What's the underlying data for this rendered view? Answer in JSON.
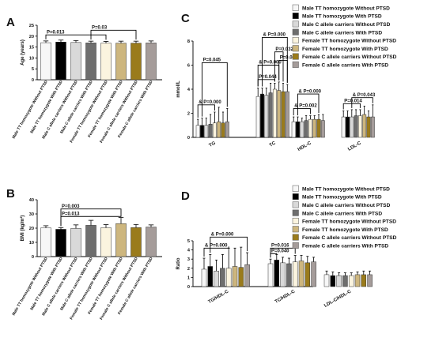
{
  "categories": [
    "Male TT homozygote Without PTSD",
    "Male TT homozygote With PTSD",
    "Male C allele carriers Without PTSD",
    "Male C allele carriers With PTSD",
    "Female TT homozygote Without PTSD",
    "Female TT homozygote With PTSD",
    "Female C allele carriers Without PTSD",
    "Female C allele carriers With PTSD"
  ],
  "colors": [
    "#f7f7f7",
    "#000000",
    "#d9d9d9",
    "#6e6e6e",
    "#fbf4df",
    "#cdb67e",
    "#9a7b1c",
    "#a59c9a"
  ],
  "panels": [
    {
      "letter": "A",
      "chart_data": {
        "type": "bar",
        "ylabel": "Age (years)",
        "ylim": [
          0,
          25
        ],
        "yticks": [
          "0",
          "5",
          "10",
          "15",
          "20",
          "25"
        ],
        "values": [
          17.0,
          17.3,
          17.1,
          16.9,
          16.8,
          16.8,
          16.8,
          16.9
        ],
        "errors": [
          0.8,
          0.9,
          0.9,
          0.8,
          0.8,
          0.9,
          0.9,
          0.9
        ],
        "annotations": [
          {
            "text": "P=0.013",
            "from": 0,
            "to": 4,
            "level": 20.6
          },
          {
            "text": "P=0.03",
            "from": 3,
            "to": 6,
            "level": 22.7
          }
        ]
      }
    },
    {
      "letter": "B",
      "chart_data": {
        "type": "bar",
        "ylabel": "BMI (kg/m²)",
        "ylim": [
          0,
          40
        ],
        "yticks": [
          "0",
          "10",
          "20",
          "30",
          "40"
        ],
        "values": [
          20.2,
          19.2,
          19.8,
          22.0,
          20.3,
          23.2,
          20.4,
          20.8
        ],
        "errors": [
          1.5,
          1.2,
          2.5,
          3.5,
          2.2,
          4.3,
          2.2,
          1.5
        ],
        "annotations": [
          {
            "text": "P=0.013",
            "from": 1,
            "to": 5,
            "level": 28.2
          },
          {
            "text": "P=0.003",
            "from": 1,
            "to": 5,
            "level": 33.5
          }
        ]
      }
    },
    {
      "letter": "C",
      "chart_data": {
        "type": "bar",
        "ylabel": "mmol/L",
        "ylim": [
          0,
          8
        ],
        "yticks": [
          "0",
          "2",
          "4",
          "6",
          "8"
        ],
        "groups": [
          "TG",
          "TC",
          "HDL-C",
          "LDL-C"
        ],
        "values": [
          [
            1.0,
            1.0,
            1.0,
            1.1,
            1.2,
            1.3,
            1.2,
            1.3
          ],
          [
            3.4,
            3.6,
            3.5,
            3.7,
            4.0,
            3.9,
            3.8,
            3.8
          ],
          [
            1.3,
            1.3,
            1.3,
            1.4,
            1.5,
            1.5,
            1.5,
            1.4
          ],
          [
            1.7,
            1.7,
            1.7,
            1.8,
            1.8,
            1.9,
            1.7,
            1.7
          ]
        ],
        "errors": [
          [
            0.5,
            0.6,
            0.6,
            0.8,
            0.9,
            1.2,
            0.9,
            1.1
          ],
          [
            0.7,
            0.5,
            0.6,
            0.8,
            0.5,
            0.7,
            0.7,
            0.6
          ],
          [
            0.4,
            0.4,
            0.3,
            0.4,
            0.3,
            0.3,
            0.4,
            0.5
          ],
          [
            0.5,
            0.5,
            0.6,
            0.5,
            0.5,
            0.7,
            0.5,
            1.0
          ]
        ],
        "annotations": [
          {
            "text": "& P=0.000",
            "from": [
              0,
              0
            ],
            "to": [
              0,
              4
            ],
            "level": 2.7
          },
          {
            "text": "P=0.045",
            "from": [
              0,
              1
            ],
            "to": [
              0,
              7
            ],
            "level": 6.2
          },
          {
            "text": "P=0.044",
            "from": [
              1,
              0
            ],
            "to": [
              1,
              4
            ],
            "level": 4.8
          },
          {
            "text": "& P=0.000",
            "from": [
              1,
              0
            ],
            "to": [
              1,
              5
            ],
            "level": 6.0
          },
          {
            "text": "P=0.032",
            "from": [
              1,
              4
            ],
            "to": [
              1,
              6
            ],
            "level": 7.1
          },
          {
            "text": "P=0.049",
            "from": [
              1,
              5
            ],
            "to": [
              1,
              7
            ],
            "level": 6.4
          },
          {
            "text": "& P=0.000",
            "from": [
              1,
              1
            ],
            "to": [
              1,
              7
            ],
            "level": 8.3
          },
          {
            "text": "& P=0.002",
            "from": [
              2,
              0
            ],
            "to": [
              2,
              4
            ],
            "level": 2.4
          },
          {
            "text": "& P=0.000",
            "from": [
              2,
              1
            ],
            "to": [
              2,
              6
            ],
            "level": 3.6
          },
          {
            "text": "P=0.014",
            "from": [
              3,
              0
            ],
            "to": [
              3,
              4
            ],
            "level": 2.8
          },
          {
            "text": "& P=0.043",
            "from": [
              3,
              2
            ],
            "to": [
              3,
              7
            ],
            "level": 3.3
          }
        ]
      }
    },
    {
      "letter": "D",
      "chart_data": {
        "type": "bar",
        "ylabel": "Ratio",
        "ylim": [
          0,
          5
        ],
        "yticks": [
          "0",
          "1",
          "2",
          "3",
          "4",
          "5"
        ],
        "groups": [
          "TG/HDL-C",
          "TC/HDL-C",
          "LDL-C/HDL-C"
        ],
        "values": [
          [
            1.9,
            2.2,
            1.7,
            2.0,
            2.0,
            2.2,
            2.1,
            2.4
          ],
          [
            2.5,
            2.9,
            2.6,
            2.5,
            2.7,
            2.8,
            2.6,
            2.7
          ],
          [
            1.3,
            1.2,
            1.2,
            1.2,
            1.2,
            1.3,
            1.3,
            1.3
          ]
        ],
        "errors": [
          [
            1.2,
            1.3,
            1.2,
            1.5,
            2.2,
            2.0,
            2.2,
            1.3
          ],
          [
            0.5,
            0.6,
            0.6,
            0.6,
            0.7,
            0.6,
            0.7,
            0.5
          ],
          [
            0.4,
            0.4,
            0.3,
            0.3,
            0.3,
            0.3,
            0.4,
            0.4
          ]
        ],
        "annotations": [
          {
            "text": "& P=0.000",
            "from": [
              0,
              0
            ],
            "to": [
              0,
              4
            ],
            "level": 4.2
          },
          {
            "text": "& P=0.000",
            "from": [
              0,
              1
            ],
            "to": [
              0,
              7
            ],
            "level": 5.4
          },
          {
            "text": "P=0.040",
            "from": [
              1,
              0
            ],
            "to": [
              1,
              1
            ],
            "level": 3.6
          },
          {
            "text": "P=0.016",
            "from": [
              1,
              0
            ],
            "to": [
              1,
              4
            ],
            "level": 4.2
          }
        ]
      }
    }
  ],
  "legend": {
    "entries": [
      "Male TT  homozygote Without PTSD",
      "Male TT  homozygote With PTSD",
      "Male C allele carriers Without PTSD",
      "Male C allele carriers With PTSD",
      "Female TT  homozygote Without PTSD",
      "Female TT  homozygote With PTSD",
      "Female C allele carriers Without PTSD",
      "Female C allele carriers With PTSD"
    ]
  }
}
